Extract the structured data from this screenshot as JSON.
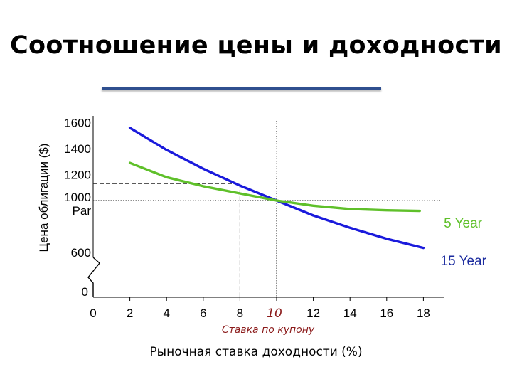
{
  "title": "Соотношение цены и доходности",
  "chart_data": {
    "type": "line",
    "xlabel": "Рыночная ставка доходности (%)",
    "ylabel": "Цена облигации ($)",
    "x_ticks": [
      "0",
      "2",
      "4",
      "6",
      "8",
      "10",
      "12",
      "14",
      "16",
      "18"
    ],
    "y_ticks": [
      "0",
      "600",
      "1000\nPar",
      "1200",
      "1400",
      "1600"
    ],
    "annotation": "Ставка по купону",
    "grid": false,
    "series": [
      {
        "name": "15 Year",
        "color": "#1a1adc",
        "points": [
          [
            2,
            1560
          ],
          [
            4,
            1390
          ],
          [
            6,
            1245
          ],
          [
            8,
            1115
          ],
          [
            10,
            1000
          ],
          [
            12,
            885
          ],
          [
            14,
            790
          ],
          [
            16,
            705
          ],
          [
            18,
            635
          ]
        ]
      },
      {
        "name": "5 Year",
        "color": "#5fc02a",
        "points": [
          [
            2,
            1290
          ],
          [
            4,
            1180
          ],
          [
            6,
            1110
          ],
          [
            8,
            1055
          ],
          [
            10,
            1000
          ],
          [
            12,
            960
          ],
          [
            14,
            935
          ],
          [
            16,
            925
          ],
          [
            17.8,
            920
          ]
        ]
      }
    ],
    "reference_lines": [
      {
        "x": 10,
        "y": 1000
      },
      {
        "x": 8,
        "y": 1130
      }
    ],
    "colors": {
      "axis": "#000000",
      "annotation": "#8b1a1a"
    }
  }
}
